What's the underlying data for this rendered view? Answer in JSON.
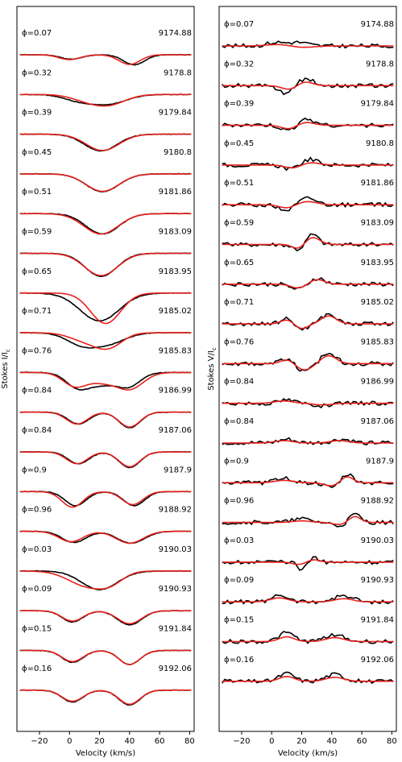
{
  "chart_data": [
    {
      "type": "line",
      "panel": "stokes-i",
      "ylabel": "Stokes I/I",
      "ylabel_sub": "c",
      "xlabel": "Velocity (km/s)",
      "xlim": [
        -35,
        83
      ],
      "xticks": [
        -20,
        0,
        20,
        40,
        60,
        80
      ],
      "xtick_labels": [
        "−20",
        "0",
        "20",
        "40",
        "60",
        "80"
      ],
      "series": [
        {
          "color": "#000000"
        },
        {
          "color": "#e8201c"
        }
      ],
      "profiles": [
        {
          "phase": "ϕ=0.07",
          "hjd": "9174.88",
          "obs": [
            {
              "c": 1,
              "d": 0.12,
              "w": 7
            },
            {
              "c": 43,
              "d": 0.27,
              "w": 7
            }
          ],
          "model": [
            {
              "c": 0,
              "d": 0.13,
              "w": 7
            },
            {
              "c": 40,
              "d": 0.26,
              "w": 7
            }
          ]
        },
        {
          "phase": "ϕ=0.32",
          "hjd": "9178.8",
          "obs": [
            {
              "c": 6,
              "d": 0.15,
              "w": 10
            },
            {
              "c": 26,
              "d": 0.25,
              "w": 12
            }
          ],
          "model": [
            {
              "c": 10,
              "d": 0.12,
              "w": 10
            },
            {
              "c": 26,
              "d": 0.27,
              "w": 11
            }
          ]
        },
        {
          "phase": "ϕ=0.39",
          "hjd": "9179.84",
          "obs": [
            {
              "c": 21,
              "d": 0.45,
              "w": 11
            }
          ],
          "model": [
            {
              "c": 22,
              "d": 0.44,
              "w": 11
            }
          ]
        },
        {
          "phase": "ϕ=0.45",
          "hjd": "9180.8",
          "obs": [
            {
              "c": 22,
              "d": 0.48,
              "w": 11
            }
          ],
          "model": [
            {
              "c": 22,
              "d": 0.47,
              "w": 11
            }
          ]
        },
        {
          "phase": "ϕ=0.51",
          "hjd": "9181.86",
          "obs": [
            {
              "c": 22,
              "d": 0.55,
              "w": 11
            }
          ],
          "model": [
            {
              "c": 21,
              "d": 0.55,
              "w": 11.5
            }
          ]
        },
        {
          "phase": "ϕ=0.59",
          "hjd": "9183.09",
          "obs": [
            {
              "c": 21,
              "d": 0.62,
              "w": 10.5
            }
          ],
          "model": [
            {
              "c": 21,
              "d": 0.6,
              "w": 11
            }
          ]
        },
        {
          "phase": "ϕ=0.65",
          "hjd": "9183.95",
          "obs": [
            {
              "c": 20,
              "d": 0.75,
              "w": 13
            }
          ],
          "model": [
            {
              "c": 24,
              "d": 0.82,
              "w": 10
            }
          ]
        },
        {
          "phase": "ϕ=0.71",
          "hjd": "9185.02",
          "obs": [
            {
              "c": 8,
              "d": 0.3,
              "w": 10
            },
            {
              "c": 26,
              "d": 0.28,
              "w": 11
            }
          ],
          "model": [
            {
              "c": 10,
              "d": 0.2,
              "w": 10
            },
            {
              "c": 26,
              "d": 0.38,
              "w": 9
            }
          ]
        },
        {
          "phase": "ϕ=0.76",
          "hjd": "9185.83",
          "obs": [
            {
              "c": 6,
              "d": 0.42,
              "w": 8
            },
            {
              "c": 22,
              "d": 0.27,
              "w": 8
            },
            {
              "c": 39,
              "d": 0.38,
              "w": 8
            }
          ],
          "model": [
            {
              "c": 4,
              "d": 0.38,
              "w": 8
            },
            {
              "c": 22,
              "d": 0.22,
              "w": 8
            },
            {
              "c": 40,
              "d": 0.45,
              "w": 9
            }
          ]
        },
        {
          "phase": "ϕ=0.84",
          "hjd": "9186.99",
          "obs": [
            {
              "c": 6,
              "d": 0.32,
              "w": 7
            },
            {
              "c": 40,
              "d": 0.42,
              "w": 7
            }
          ],
          "model": [
            {
              "c": 5,
              "d": 0.32,
              "w": 7
            },
            {
              "c": 40,
              "d": 0.4,
              "w": 7
            }
          ]
        },
        {
          "phase": "ϕ=0.84",
          "hjd": "9187.06",
          "obs": [
            {
              "c": 6,
              "d": 0.32,
              "w": 7
            },
            {
              "c": 40,
              "d": 0.42,
              "w": 7
            }
          ],
          "model": [
            {
              "c": 5,
              "d": 0.32,
              "w": 7
            },
            {
              "c": 40,
              "d": 0.4,
              "w": 7
            }
          ]
        },
        {
          "phase": "ϕ=0.9",
          "hjd": "9187.9",
          "obs": [
            {
              "c": 4,
              "d": 0.38,
              "w": 7
            },
            {
              "c": 43,
              "d": 0.38,
              "w": 7
            }
          ],
          "model": [
            {
              "c": 2,
              "d": 0.42,
              "w": 7
            },
            {
              "c": 42,
              "d": 0.35,
              "w": 7
            }
          ]
        },
        {
          "phase": "ϕ=0.96",
          "hjd": "9188.92",
          "obs": [
            {
              "c": 3,
              "d": 0.3,
              "w": 8
            },
            {
              "c": 41,
              "d": 0.32,
              "w": 9
            }
          ],
          "model": [
            {
              "c": 1,
              "d": 0.28,
              "w": 8
            },
            {
              "c": 40,
              "d": 0.32,
              "w": 9
            }
          ]
        },
        {
          "phase": "ϕ=0.03",
          "hjd": "9190.03",
          "obs": [
            {
              "c": 20,
              "d": 0.5,
              "w": 12
            }
          ],
          "model": [
            {
              "c": 13,
              "d": 0.42,
              "w": 13
            },
            {
              "c": 28,
              "d": 0.2,
              "w": 8
            }
          ]
        },
        {
          "phase": "ϕ=0.09",
          "hjd": "9190.93",
          "obs": [
            {
              "c": 2,
              "d": 0.3,
              "w": 7
            },
            {
              "c": 40,
              "d": 0.38,
              "w": 8
            }
          ],
          "model": [
            {
              "c": 2,
              "d": 0.28,
              "w": 7
            },
            {
              "c": 40,
              "d": 0.35,
              "w": 8
            }
          ]
        },
        {
          "phase": "ϕ=0.15",
          "hjd": "9191.84",
          "obs": [
            {
              "c": 2,
              "d": 0.32,
              "w": 7
            },
            {
              "c": 40,
              "d": 0.38,
              "w": 7
            }
          ],
          "model": [
            {
              "c": 2,
              "d": 0.3,
              "w": 7
            },
            {
              "c": 40,
              "d": 0.38,
              "w": 7
            }
          ]
        },
        {
          "phase": "ϕ=0.16",
          "hjd": "9192.06",
          "obs": [
            {
              "c": 2,
              "d": 0.32,
              "w": 7
            },
            {
              "c": 40,
              "d": 0.4,
              "w": 7
            }
          ],
          "model": [
            {
              "c": 2,
              "d": 0.3,
              "w": 7
            },
            {
              "c": 40,
              "d": 0.38,
              "w": 7
            }
          ]
        }
      ]
    },
    {
      "type": "line",
      "panel": "stokes-v",
      "ylabel": "Stokes V/I",
      "ylabel_sub": "c",
      "xlabel": "Velocity (km/s)",
      "xlim": [
        -35,
        83
      ],
      "xticks": [
        -20,
        0,
        20,
        40,
        60,
        80
      ],
      "xtick_labels": [
        "−20",
        "0",
        "20",
        "40",
        "60",
        "80"
      ],
      "series": [
        {
          "color": "#000000"
        },
        {
          "color": "#e8201c"
        }
      ],
      "profiles": [
        {
          "phase": "ϕ=0.07",
          "hjd": "9174.88",
          "obs": [
            {
              "c": 3,
              "a": 0.2,
              "w": 6
            },
            {
              "c": 18,
              "a": 0.2,
              "w": 6
            }
          ],
          "model": [
            {
              "c": 5,
              "a": 0.1,
              "w": 8
            },
            {
              "c": 20,
              "a": -0.1,
              "w": 8
            }
          ]
        },
        {
          "phase": "ϕ=0.32",
          "hjd": "9178.8",
          "obs": [
            {
              "c": 10,
              "a": -0.5,
              "w": 5
            },
            {
              "c": 22,
              "a": 0.4,
              "w": 6
            }
          ],
          "model": [
            {
              "c": 12,
              "a": -0.25,
              "w": 5
            },
            {
              "c": 22,
              "a": 0.25,
              "w": 5
            }
          ]
        },
        {
          "phase": "ϕ=0.39",
          "hjd": "9179.84",
          "obs": [
            {
              "c": 12,
              "a": -0.4,
              "w": 5
            },
            {
              "c": 22,
              "a": 0.4,
              "w": 6
            }
          ],
          "model": [
            {
              "c": 12,
              "a": -0.25,
              "w": 5
            },
            {
              "c": 22,
              "a": 0.2,
              "w": 6
            }
          ]
        },
        {
          "phase": "ϕ=0.45",
          "hjd": "9180.8",
          "obs": [
            {
              "c": 14,
              "a": -0.3,
              "w": 5
            },
            {
              "c": 24,
              "a": 0.35,
              "w": 6
            }
          ],
          "model": [
            {
              "c": 14,
              "a": -0.2,
              "w": 5
            },
            {
              "c": 26,
              "a": 0.15,
              "w": 6
            }
          ]
        },
        {
          "phase": "ϕ=0.51",
          "hjd": "9181.86",
          "obs": [
            {
              "c": 10,
              "a": -0.3,
              "w": 5
            },
            {
              "c": 24,
              "a": 0.4,
              "w": 6
            }
          ],
          "model": [
            {
              "c": 10,
              "a": -0.2,
              "w": 5
            },
            {
              "c": 24,
              "a": 0.2,
              "w": 6
            }
          ]
        },
        {
          "phase": "ϕ=0.59",
          "hjd": "9183.09",
          "obs": [
            {
              "c": 18,
              "a": -0.3,
              "w": 4
            },
            {
              "c": 27,
              "a": 0.6,
              "w": 4
            }
          ],
          "model": [
            {
              "c": 18,
              "a": -0.3,
              "w": 4
            },
            {
              "c": 27,
              "a": 0.45,
              "w": 5
            }
          ]
        },
        {
          "phase": "ϕ=0.65",
          "hjd": "9183.95",
          "obs": [
            {
              "c": 18,
              "a": -0.3,
              "w": 5
            },
            {
              "c": 30,
              "a": 0.35,
              "w": 5
            }
          ],
          "model": [
            {
              "c": 18,
              "a": -0.25,
              "w": 5
            },
            {
              "c": 30,
              "a": 0.3,
              "w": 5
            }
          ]
        },
        {
          "phase": "ϕ=0.71",
          "hjd": "9185.02",
          "obs": [
            {
              "c": 10,
              "a": 0.3,
              "w": 4
            },
            {
              "c": 20,
              "a": -0.3,
              "w": 4
            },
            {
              "c": 38,
              "a": 0.55,
              "w": 5
            }
          ],
          "model": [
            {
              "c": 10,
              "a": 0.25,
              "w": 4
            },
            {
              "c": 20,
              "a": -0.3,
              "w": 4
            },
            {
              "c": 38,
              "a": 0.5,
              "w": 5
            }
          ]
        },
        {
          "phase": "ϕ=0.76",
          "hjd": "9185.83",
          "obs": [
            {
              "c": 10,
              "a": 0.3,
              "w": 4
            },
            {
              "c": 22,
              "a": -0.45,
              "w": 5
            },
            {
              "c": 38,
              "a": 0.6,
              "w": 5
            }
          ],
          "model": [
            {
              "c": 10,
              "a": 0.25,
              "w": 4
            },
            {
              "c": 22,
              "a": -0.4,
              "w": 5
            },
            {
              "c": 38,
              "a": 0.5,
              "w": 5
            }
          ]
        },
        {
          "phase": "ϕ=0.84",
          "hjd": "9186.99",
          "obs": [
            {
              "c": 10,
              "a": 0.2,
              "w": 5
            },
            {
              "c": 35,
              "a": -0.15,
              "w": 6
            }
          ],
          "model": [
            {
              "c": 8,
              "a": 0.15,
              "w": 6
            },
            {
              "c": 34,
              "a": -0.1,
              "w": 6
            }
          ]
        },
        {
          "phase": "ϕ=0.84",
          "hjd": "9187.06",
          "obs": [
            {
              "c": 10,
              "a": 0.2,
              "w": 5
            },
            {
              "c": 47,
              "a": 0.2,
              "w": 6
            }
          ],
          "model": [
            {
              "c": 8,
              "a": 0.15,
              "w": 6
            },
            {
              "c": 45,
              "a": 0.15,
              "w": 6
            }
          ]
        },
        {
          "phase": "ϕ=0.9",
          "hjd": "9187.9",
          "obs": [
            {
              "c": 8,
              "a": 0.3,
              "w": 5
            },
            {
              "c": 40,
              "a": -0.3,
              "w": 5
            },
            {
              "c": 50,
              "a": 0.5,
              "w": 4
            }
          ],
          "model": [
            {
              "c": 8,
              "a": 0.15,
              "w": 6
            },
            {
              "c": 40,
              "a": -0.2,
              "w": 5
            },
            {
              "c": 50,
              "a": 0.4,
              "w": 4
            }
          ]
        },
        {
          "phase": "ϕ=0.96",
          "hjd": "9188.92",
          "obs": [
            {
              "c": 20,
              "a": 0.2,
              "w": 6
            },
            {
              "c": 46,
              "a": -0.2,
              "w": 5
            },
            {
              "c": 55,
              "a": 0.5,
              "w": 4
            }
          ],
          "model": [
            {
              "c": 20,
              "a": 0.1,
              "w": 6
            },
            {
              "c": 46,
              "a": -0.15,
              "w": 5
            },
            {
              "c": 55,
              "a": 0.4,
              "w": 4
            }
          ]
        },
        {
          "phase": "ϕ=0.03",
          "hjd": "9190.03",
          "obs": [
            {
              "c": 20,
              "a": -0.4,
              "w": 3
            },
            {
              "c": 28,
              "a": 0.3,
              "w": 3
            }
          ],
          "model": [
            {
              "c": 18,
              "a": -0.15,
              "w": 4
            },
            {
              "c": 28,
              "a": 0.15,
              "w": 4
            }
          ]
        },
        {
          "phase": "ϕ=0.09",
          "hjd": "9190.93",
          "obs": [
            {
              "c": 5,
              "a": 0.4,
              "w": 5
            },
            {
              "c": 48,
              "a": 0.35,
              "w": 6
            }
          ],
          "model": [
            {
              "c": 5,
              "a": 0.25,
              "w": 6
            },
            {
              "c": 48,
              "a": 0.2,
              "w": 6
            }
          ]
        },
        {
          "phase": "ϕ=0.15",
          "hjd": "9191.84",
          "obs": [
            {
              "c": 10,
              "a": 0.5,
              "w": 5
            },
            {
              "c": 42,
              "a": 0.4,
              "w": 6
            }
          ],
          "model": [
            {
              "c": 10,
              "a": 0.3,
              "w": 5
            },
            {
              "c": 42,
              "a": 0.25,
              "w": 6
            }
          ]
        },
        {
          "phase": "ϕ=0.16",
          "hjd": "9192.06",
          "obs": [
            {
              "c": 10,
              "a": 0.45,
              "w": 5
            },
            {
              "c": 42,
              "a": 0.4,
              "w": 6
            }
          ],
          "model": [
            {
              "c": 10,
              "a": 0.3,
              "w": 5
            },
            {
              "c": 42,
              "a": 0.25,
              "w": 6
            }
          ]
        }
      ]
    }
  ]
}
